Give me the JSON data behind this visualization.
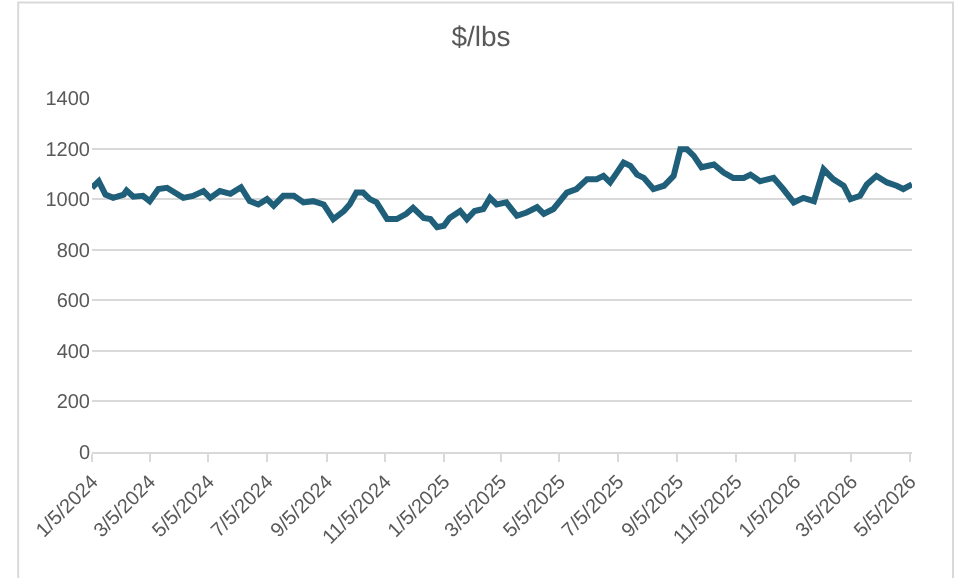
{
  "chart_data": {
    "type": "line",
    "title": "$/lbs",
    "x": [
      "2024-01-05",
      "2024-01-12",
      "2024-01-19",
      "2024-01-27",
      "2024-02-07",
      "2024-02-10",
      "2024-02-17",
      "2024-02-27",
      "2024-03-05",
      "2024-03-14",
      "2024-03-23",
      "2024-03-31",
      "2024-04-09",
      "2024-04-19",
      "2024-04-30",
      "2024-05-07",
      "2024-05-17",
      "2024-05-28",
      "2024-06-08",
      "2024-06-17",
      "2024-06-26",
      "2024-07-05",
      "2024-07-12",
      "2024-07-22",
      "2024-08-02",
      "2024-08-12",
      "2024-08-22",
      "2024-09-02",
      "2024-09-12",
      "2024-09-23",
      "2024-09-29",
      "2024-10-06",
      "2024-10-13",
      "2024-10-20",
      "2024-10-27",
      "2024-11-07",
      "2024-11-17",
      "2024-11-27",
      "2024-12-04",
      "2024-12-15",
      "2024-12-22",
      "2024-12-29",
      "2025-01-05",
      "2025-01-11",
      "2025-01-22",
      "2025-01-29",
      "2025-02-06",
      "2025-02-15",
      "2025-02-22",
      "2025-03-01",
      "2025-03-11",
      "2025-03-22",
      "2025-04-01",
      "2025-04-12",
      "2025-04-19",
      "2025-04-29",
      "2025-05-13",
      "2025-05-23",
      "2025-06-03",
      "2025-06-13",
      "2025-06-20",
      "2025-06-27",
      "2025-07-04",
      "2025-07-11",
      "2025-07-18",
      "2025-07-25",
      "2025-08-01",
      "2025-08-11",
      "2025-08-22",
      "2025-09-01",
      "2025-09-08",
      "2025-09-15",
      "2025-09-22",
      "2025-09-30",
      "2025-10-13",
      "2025-10-23",
      "2025-11-02",
      "2025-11-13",
      "2025-11-20",
      "2025-11-30",
      "2025-12-14",
      "2025-12-24",
      "2026-01-04",
      "2026-01-14",
      "2026-01-25",
      "2026-02-04",
      "2026-02-14",
      "2026-02-25",
      "2026-03-04",
      "2026-03-14",
      "2026-03-21",
      "2026-03-31",
      "2026-04-11",
      "2026-04-21",
      "2026-04-28",
      "2026-05-07"
    ],
    "series": [
      {
        "color": "#1f5f7a",
        "values": [
          1045,
          1071,
          1018,
          1005,
          1018,
          1034,
          1010,
          1013,
          992,
          1040,
          1045,
          1026,
          1005,
          1013,
          1032,
          1005,
          1032,
          1021,
          1047,
          992,
          979,
          1000,
          974,
          1013,
          1013,
          987,
          992,
          979,
          921,
          953,
          979,
          1026,
          1026,
          1000,
          987,
          921,
          921,
          942,
          966,
          926,
          921,
          889,
          895,
          926,
          953,
          921,
          953,
          961,
          1005,
          979,
          987,
          934,
          947,
          968,
          942,
          961,
          1026,
          1040,
          1079,
          1079,
          1092,
          1066,
          1105,
          1145,
          1132,
          1097,
          1084,
          1040,
          1053,
          1092,
          1197,
          1197,
          1171,
          1126,
          1137,
          1105,
          1084,
          1084,
          1097,
          1071,
          1084,
          1040,
          987,
          1005,
          992,
          1118,
          1079,
          1053,
          1000,
          1013,
          1058,
          1092,
          1066,
          1053,
          1040,
          1058
        ]
      }
    ],
    "xlim": [
      "2024-01-05",
      "2026-05-07"
    ],
    "xticks": [
      {
        "value": "2024-01-05",
        "label": "1/5/2024"
      },
      {
        "value": "2024-03-05",
        "label": "3/5/2024"
      },
      {
        "value": "2024-05-05",
        "label": "5/5/2024"
      },
      {
        "value": "2024-07-05",
        "label": "7/5/2024"
      },
      {
        "value": "2024-09-05",
        "label": "9/5/2024"
      },
      {
        "value": "2024-11-05",
        "label": "11/5/2024"
      },
      {
        "value": "2025-01-05",
        "label": "1/5/2025"
      },
      {
        "value": "2025-03-05",
        "label": "3/5/2025"
      },
      {
        "value": "2025-05-05",
        "label": "5/5/2025"
      },
      {
        "value": "2025-07-05",
        "label": "7/5/2025"
      },
      {
        "value": "2025-09-05",
        "label": "9/5/2025"
      },
      {
        "value": "2025-11-05",
        "label": "11/5/2025"
      },
      {
        "value": "2026-01-05",
        "label": "1/5/2026"
      },
      {
        "value": "2026-03-05",
        "label": "3/5/2026"
      },
      {
        "value": "2026-05-05",
        "label": "5/5/2026"
      }
    ],
    "ylim": [
      0,
      1400
    ],
    "yticks": [
      0,
      200,
      400,
      600,
      800,
      1000,
      1200,
      1400
    ],
    "grid": "y",
    "marker": "none",
    "line_style": "solid"
  }
}
